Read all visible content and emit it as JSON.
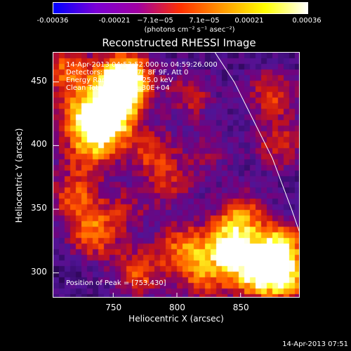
{
  "colorbar": {
    "tick_labels": [
      "-0.00036",
      "-0.00021",
      "−7.1e−05",
      "7.1e−05",
      "0.00021",
      "0.00036"
    ],
    "units": "(photons cm⁻² s⁻¹ asec⁻²)",
    "colors": [
      "#0000ff",
      "#7a00d6",
      "#a000a0",
      "#ff3000",
      "#ff9a00",
      "#ffff00",
      "#ffffff"
    ]
  },
  "chart_data": {
    "type": "heatmap",
    "title": "Reconstructed RHESSI Image",
    "xlabel": "Heliocentric X (arcsec)",
    "ylabel": "Heliocentric Y (arcsec)",
    "xlim": [
      703,
      897
    ],
    "ylim": [
      280,
      473
    ],
    "xticks": [
      750,
      800,
      850
    ],
    "yticks": [
      300,
      350,
      400,
      450
    ],
    "annotations": [
      "14-Apr-2013 04:53:52.000 to 04:59:26.000",
      "Detectors: 3F 5F 6F 7F 8F 9F, Att 0",
      "Energy Range: 12.0 - 25.0 keV",
      "Clean      Total counts: 1.30E+04"
    ],
    "peak_label": "Position of Peak = [753,430]",
    "peak": [
      753,
      430
    ],
    "limb_curve": [
      [
        830,
        473
      ],
      [
        845,
        450
      ],
      [
        860,
        420
      ],
      [
        875,
        390
      ],
      [
        890,
        350
      ],
      [
        897,
        330
      ]
    ],
    "blobs": [
      {
        "x": 755,
        "y": 440,
        "v": 1.0
      },
      {
        "x": 745,
        "y": 415,
        "v": 0.85
      },
      {
        "x": 760,
        "y": 455,
        "v": 0.9
      },
      {
        "x": 725,
        "y": 425,
        "v": 0.7
      },
      {
        "x": 715,
        "y": 460,
        "v": 0.6
      },
      {
        "x": 730,
        "y": 395,
        "v": 0.5
      },
      {
        "x": 780,
        "y": 395,
        "v": 0.45
      },
      {
        "x": 810,
        "y": 440,
        "v": 0.4
      },
      {
        "x": 720,
        "y": 360,
        "v": 0.55
      },
      {
        "x": 735,
        "y": 330,
        "v": 0.6
      },
      {
        "x": 770,
        "y": 300,
        "v": 0.55
      },
      {
        "x": 805,
        "y": 320,
        "v": 0.6
      },
      {
        "x": 840,
        "y": 320,
        "v": 0.8
      },
      {
        "x": 860,
        "y": 300,
        "v": 0.85
      },
      {
        "x": 880,
        "y": 320,
        "v": 0.9
      },
      {
        "x": 885,
        "y": 295,
        "v": 0.75
      },
      {
        "x": 850,
        "y": 345,
        "v": 0.6
      },
      {
        "x": 820,
        "y": 295,
        "v": 0.5
      },
      {
        "x": 880,
        "y": 400,
        "v": 0.45
      },
      {
        "x": 875,
        "y": 440,
        "v": 0.5
      },
      {
        "x": 795,
        "y": 370,
        "v": 0.35
      },
      {
        "x": 760,
        "y": 350,
        "v": 0.3
      },
      {
        "x": 825,
        "y": 395,
        "v": 0.25
      }
    ]
  },
  "footer": "14-Apr-2013 07:51"
}
